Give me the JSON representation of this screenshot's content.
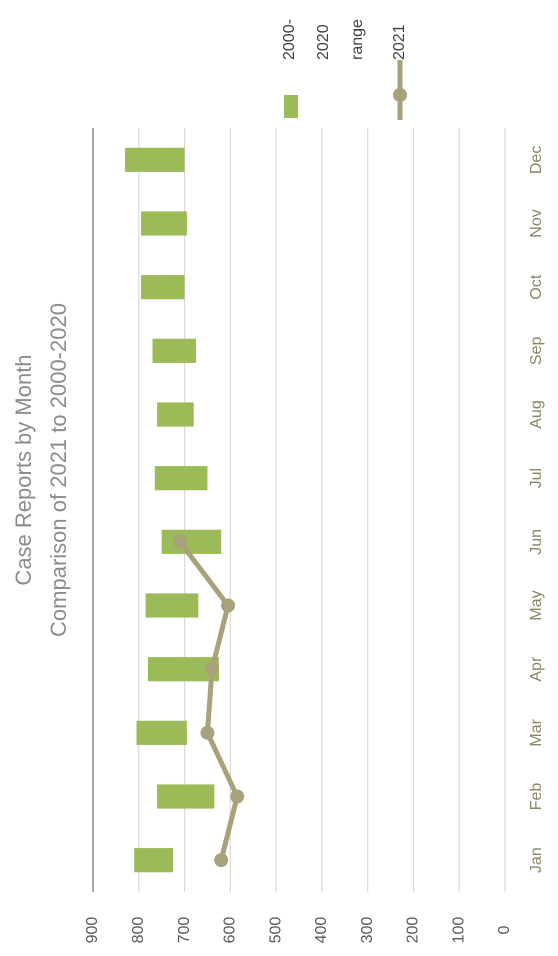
{
  "chart_data": {
    "type": "floating-bar-line",
    "title": "Case Reports by Month",
    "subtitle": "Comparison of 2021 to 2000-2020",
    "categories": [
      "Jan",
      "Feb",
      "Mar",
      "Apr",
      "May",
      "Jun",
      "Jul",
      "Aug",
      "Sep",
      "Oct",
      "Nov",
      "Dec"
    ],
    "series": [
      {
        "name": "2000-2020 range",
        "kind": "range",
        "color": "#9bbb59",
        "values": [
          [
            725,
            810
          ],
          [
            635,
            760
          ],
          [
            695,
            805
          ],
          [
            625,
            780
          ],
          [
            670,
            785
          ],
          [
            620,
            750
          ],
          [
            650,
            765
          ],
          [
            680,
            760
          ],
          [
            675,
            770
          ],
          [
            700,
            795
          ],
          [
            695,
            795
          ],
          [
            700,
            830
          ]
        ]
      },
      {
        "name": "2021",
        "kind": "line",
        "color": "#a8a27c",
        "values": [
          620,
          585,
          650,
          640,
          605,
          710,
          null,
          null,
          null,
          null,
          null,
          null
        ]
      }
    ],
    "ylim": [
      0,
      900
    ],
    "yticks": [
      0,
      100,
      200,
      300,
      400,
      500,
      600,
      700,
      800,
      900
    ],
    "grid": true,
    "rotation": -90,
    "legend": "right"
  }
}
